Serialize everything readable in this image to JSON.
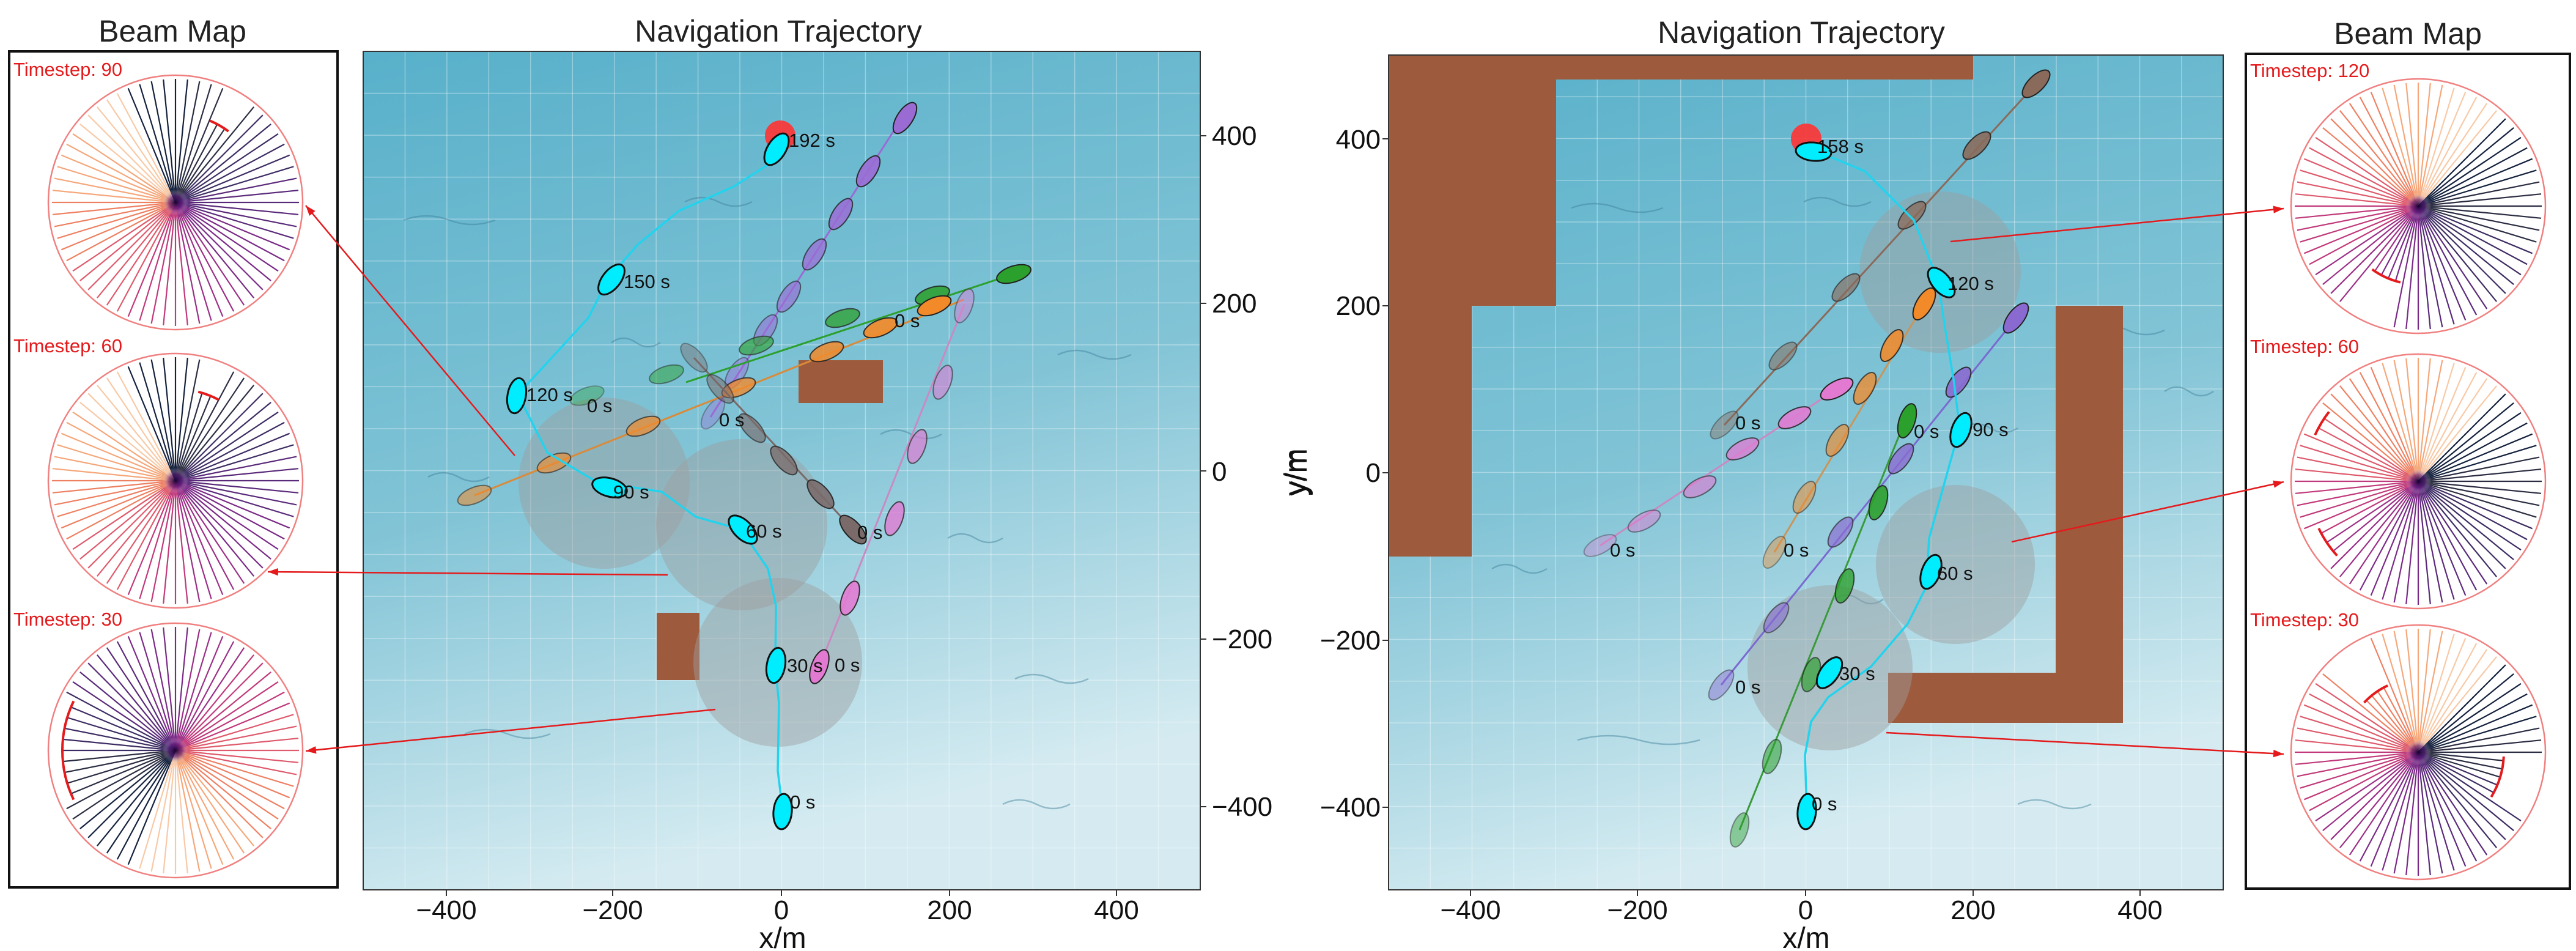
{
  "colors": {
    "sea_top": "#5cb4cc",
    "sea_bottom": "#d0e8ef",
    "land": "#9e5a3c",
    "goal": "#ff3333",
    "ownship": "#00e5ff",
    "danger_zone": "#9e9e9e",
    "beam_ring": "#e41a1c"
  },
  "left_panel": {
    "beam_map_title": "Beam Map",
    "timesteps": [
      "Timestep: 90",
      "Timestep: 60",
      "Timestep: 30"
    ],
    "plot": {
      "title": "Navigation Trajectory",
      "xlabel": "x/m",
      "ylabel": "y/m",
      "x_ticks": [
        "−400",
        "−200",
        "0",
        "200",
        "400"
      ],
      "y_ticks": [
        "400",
        "200",
        "0",
        "−200",
        "−400"
      ],
      "ownship_labels": [
        "192 s",
        "150 s",
        "120 s",
        "90 s",
        "60 s",
        "30 s",
        "0 s"
      ],
      "ship_start_labels": [
        "0 s",
        "0 s",
        "0 s",
        "0 s",
        "0 s"
      ]
    }
  },
  "right_panel": {
    "beam_map_title": "Beam Map",
    "timesteps": [
      "Timestep: 120",
      "Timestep: 60",
      "Timestep: 30"
    ],
    "plot": {
      "title": "Navigation Trajectory",
      "xlabel": "x/m",
      "ylabel": "y/m",
      "x_ticks": [
        "−400",
        "−200",
        "0",
        "200",
        "400"
      ],
      "y_ticks": [
        "400",
        "200",
        "0",
        "−200",
        "−400"
      ],
      "ownship_labels": [
        "158 s",
        "120 s",
        "90 s",
        "60 s",
        "30 s",
        "0 s"
      ],
      "ship_start_labels": [
        "0 s",
        "0 s",
        "0 s",
        "0 s",
        "0 s"
      ]
    }
  }
}
